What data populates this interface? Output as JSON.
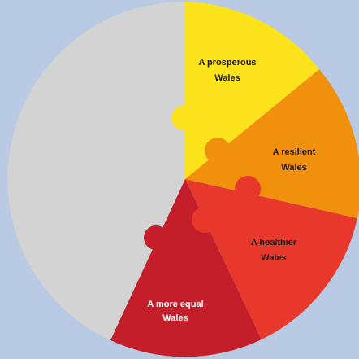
{
  "background_color": "#b8cae4",
  "segments": [
    {
      "id": "prosperous",
      "label_line1": "A prosperous",
      "label_line2": "Wales",
      "color": "#fbe21a",
      "text_color": "#1a1a1a"
    },
    {
      "id": "resilient",
      "label_line1": "A resilient",
      "label_line2": "Wales",
      "color": "#f0900c",
      "text_color": "#1a1a1a"
    },
    {
      "id": "healthier",
      "label_line1": "A healthier",
      "label_line2": "Wales",
      "color": "#e8382b",
      "text_color": "#1a1a1a"
    },
    {
      "id": "more-equal",
      "label_line1": "A more equal",
      "label_line2": "Wales",
      "color": "#c41e2a",
      "text_color": "#ffffff"
    },
    {
      "id": "remaining",
      "color": "#d3d3d3"
    }
  ]
}
